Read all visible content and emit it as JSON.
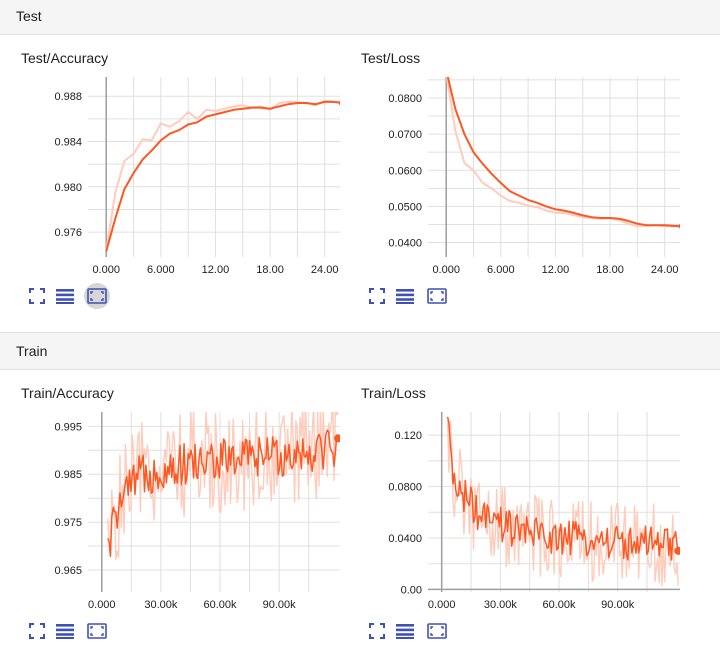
{
  "sections": [
    {
      "title": "Test"
    },
    {
      "title": "Train"
    }
  ],
  "colors": {
    "line": "#ff5722",
    "smooth_bg": "#ffccbc",
    "grid": "#e0e0e0",
    "axis": "#9e9e9e",
    "toolbar_icon": "#3f51b5"
  },
  "toolbar_icons": [
    "expand-icon",
    "data-table-icon",
    "fit-domain-icon"
  ],
  "chart_data": [
    {
      "type": "line",
      "title": "Test/Accuracy",
      "x_ticks": [
        "0.000",
        "6.000",
        "12.00",
        "18.00",
        "24.00"
      ],
      "y_ticks": [
        "0.976",
        "0.980",
        "0.984",
        "0.988"
      ],
      "xlim": [
        -2,
        27
      ],
      "ylim": [
        0.9738,
        0.9897
      ],
      "series": [
        {
          "x": [
            0,
            1,
            2,
            3,
            4,
            5,
            6,
            7,
            8,
            9,
            10,
            11,
            12,
            13,
            14,
            15,
            16,
            17,
            18,
            19,
            20,
            21,
            22,
            23,
            24,
            25,
            26
          ],
          "smoothed": [
            0.9743,
            0.9772,
            0.9798,
            0.9812,
            0.9824,
            0.9832,
            0.9841,
            0.9847,
            0.985,
            0.9855,
            0.9857,
            0.9862,
            0.9864,
            0.9866,
            0.9868,
            0.9869,
            0.987,
            0.987,
            0.9869,
            0.9871,
            0.9873,
            0.9874,
            0.9874,
            0.9873,
            0.9875,
            0.9875,
            0.9874
          ],
          "raw": [
            0.9743,
            0.9795,
            0.9823,
            0.9829,
            0.9842,
            0.9841,
            0.9856,
            0.9853,
            0.9858,
            0.9866,
            0.986,
            0.9868,
            0.9867,
            0.9869,
            0.9871,
            0.9872,
            0.987,
            0.9871,
            0.9868,
            0.9874,
            0.9875,
            0.9875,
            0.9874,
            0.9872,
            0.9876,
            0.9875,
            0.9874
          ]
        }
      ]
    },
    {
      "type": "line",
      "title": "Test/Loss",
      "x_ticks": [
        "0.000",
        "6.000",
        "12.00",
        "18.00",
        "24.00"
      ],
      "y_ticks": [
        "0.0400",
        "0.0500",
        "0.0600",
        "0.0700",
        "0.0800"
      ],
      "xlim": [
        -2,
        27
      ],
      "ylim": [
        0.036,
        0.0858
      ],
      "series": [
        {
          "x": [
            0,
            1,
            2,
            3,
            4,
            5,
            6,
            7,
            8,
            9,
            10,
            11,
            12,
            13,
            14,
            15,
            16,
            17,
            18,
            19,
            20,
            21,
            22,
            23,
            24,
            25,
            26
          ],
          "smoothed": [
            0.0878,
            0.077,
            0.07,
            0.065,
            0.0618,
            0.059,
            0.0565,
            0.0542,
            0.053,
            0.0518,
            0.051,
            0.05,
            0.0492,
            0.0488,
            0.0482,
            0.0475,
            0.047,
            0.0468,
            0.0468,
            0.0466,
            0.046,
            0.0452,
            0.0448,
            0.0448,
            0.0448,
            0.0446,
            0.0445
          ],
          "raw": [
            0.087,
            0.071,
            0.062,
            0.06,
            0.0565,
            0.055,
            0.053,
            0.0515,
            0.051,
            0.0502,
            0.0498,
            0.0488,
            0.0482,
            0.0482,
            0.0476,
            0.047,
            0.0468,
            0.0466,
            0.0468,
            0.0462,
            0.0452,
            0.0445,
            0.0446,
            0.0448,
            0.0445,
            0.0445,
            0.0445
          ]
        }
      ]
    },
    {
      "type": "line",
      "title": "Train/Accuracy",
      "x_ticks": [
        "0.000",
        "30.00k",
        "60.00k",
        "90.00k"
      ],
      "y_ticks": [
        "0.965",
        "0.975",
        "0.985",
        "0.995"
      ],
      "xlim": [
        -7000,
        127000
      ],
      "ylim": [
        0.9604,
        0.998
      ],
      "noisy": true,
      "series": [
        {
          "x_start": 3000,
          "x_end": 120000,
          "points": 170,
          "trend": [
            [
              3000,
              0.969
            ],
            [
              8000,
              0.978
            ],
            [
              20000,
              0.985
            ],
            [
              40000,
              0.987
            ],
            [
              60000,
              0.988
            ],
            [
              90000,
              0.989
            ],
            [
              120000,
              0.991
            ]
          ],
          "noise": 0.0045,
          "raw_noise": 0.011,
          "last": 0.9925
        }
      ]
    },
    {
      "type": "line",
      "title": "Train/Loss",
      "x_ticks": [
        "0.000",
        "30.00k",
        "60.00k",
        "90.00k"
      ],
      "y_ticks": [
        "0.00",
        "0.0400",
        "0.0800",
        "0.120"
      ],
      "xlim": [
        -7000,
        128000
      ],
      "ylim": [
        -0.002,
        0.138
      ],
      "noisy": true,
      "series": [
        {
          "x_start": 3000,
          "x_end": 121000,
          "points": 170,
          "trend": [
            [
              3000,
              0.125
            ],
            [
              6000,
              0.085
            ],
            [
              20000,
              0.055
            ],
            [
              40000,
              0.045
            ],
            [
              60000,
              0.04
            ],
            [
              90000,
              0.037
            ],
            [
              121000,
              0.033
            ]
          ],
          "noise": 0.014,
          "raw_noise": 0.032,
          "last": 0.03
        }
      ]
    }
  ]
}
